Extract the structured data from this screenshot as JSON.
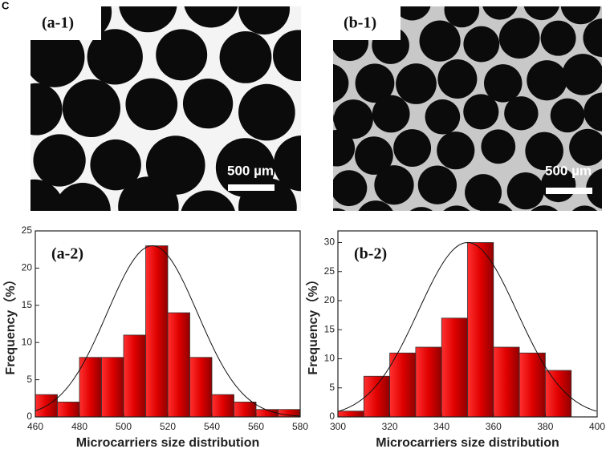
{
  "figure_label": "C",
  "images": [
    {
      "label": "(a-1)",
      "scale": "500 µm"
    },
    {
      "label": "(b-1)",
      "scale": "500 µm"
    }
  ],
  "chart_data": [
    {
      "type": "histogram",
      "panel_label": "(a-2)",
      "xlabel": "Microcarriers size distribution",
      "ylabel": "Frequency（%）",
      "bins": [
        460,
        470,
        480,
        490,
        500,
        510,
        520,
        530,
        540,
        550,
        560,
        570,
        580
      ],
      "values": [
        3,
        2,
        8,
        8,
        11,
        23,
        14,
        8,
        3,
        2,
        1,
        1
      ],
      "color": "#e00000",
      "xlim": [
        460,
        580
      ],
      "xticks": [
        460,
        480,
        500,
        520,
        540,
        560,
        580
      ],
      "ylim": [
        0,
        25
      ],
      "yticks": [
        0,
        5,
        10,
        15,
        20,
        25
      ],
      "fit": {
        "mean": 513,
        "sd": 20.5,
        "peak": 23
      }
    },
    {
      "type": "histogram",
      "panel_label": "(b-2)",
      "xlabel": "Microcarriers size distribution",
      "ylabel": "Frequency（%）",
      "bins": [
        300,
        310,
        320,
        330,
        340,
        350,
        360,
        370,
        380,
        390
      ],
      "values": [
        1,
        7,
        11,
        12,
        17,
        30,
        12,
        11,
        8
      ],
      "color": "#e00000",
      "xlim": [
        300,
        400
      ],
      "xticks": [
        300,
        320,
        340,
        360,
        380,
        400
      ],
      "ylim": [
        0,
        32
      ],
      "yticks": [
        0,
        5,
        10,
        15,
        20,
        25,
        30
      ],
      "fit": {
        "mean": 350,
        "sd": 19,
        "peak": 30
      }
    }
  ]
}
